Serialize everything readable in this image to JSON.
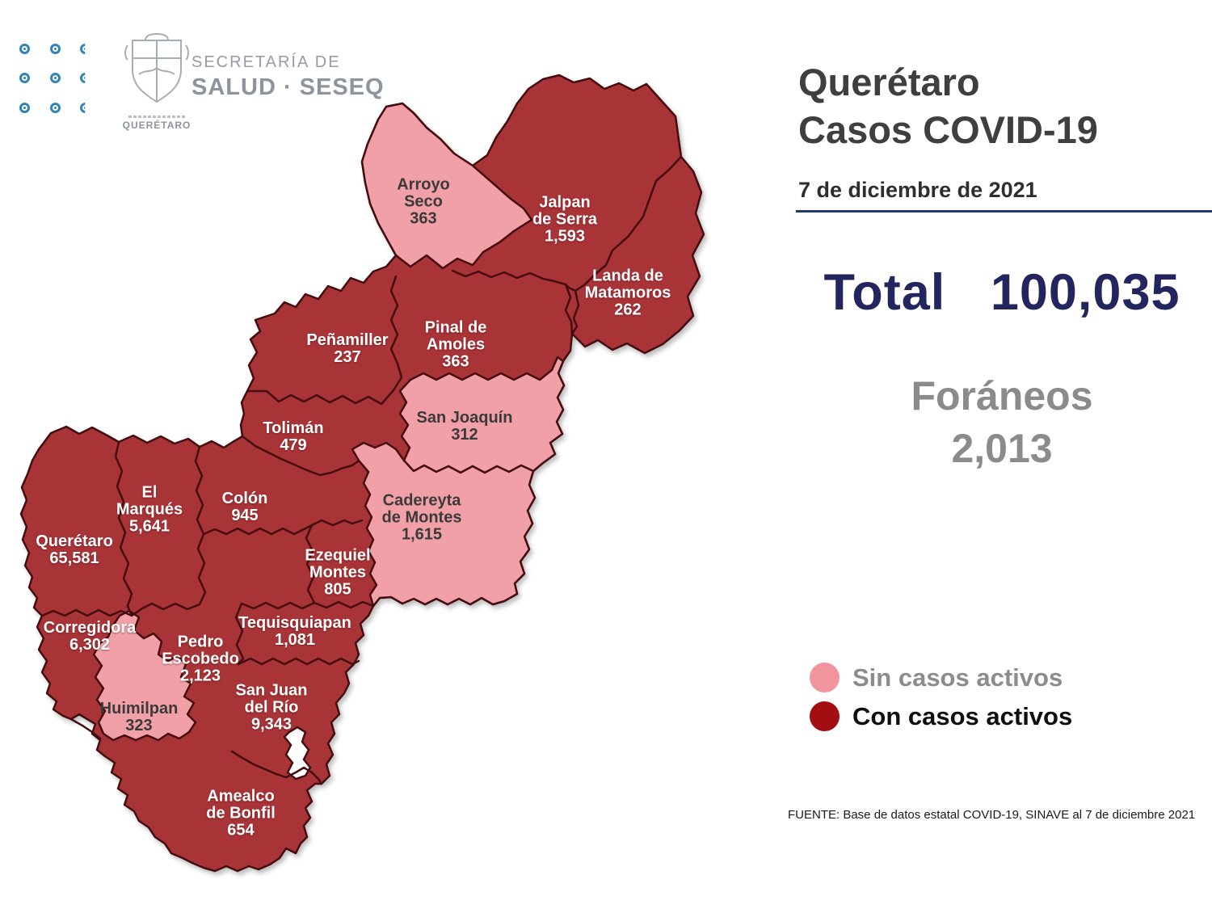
{
  "header": {
    "brand_small": "SECRETARÍA DE",
    "brand_large": "SALUD · SESEQ",
    "crest_caption": "QUERÉTARO"
  },
  "panel": {
    "title_line1": "Querétaro",
    "title_line2": "Casos COVID-19",
    "date": "7 de diciembre de 2021",
    "total_label": "Total",
    "total_value": "100,035",
    "foraneos_label": "Foráneos",
    "foraneos_value": "2,013",
    "legend": [
      {
        "id": "sin-casos",
        "label": "Sin casos activos",
        "color": "#F2949E"
      },
      {
        "id": "con-casos",
        "label": "Con casos activos",
        "color": "#A30E12"
      }
    ],
    "source": "FUENTE: Base de datos estatal COVID-19, SINAVE al 7 de diciembre 2021"
  },
  "chart_data": {
    "type": "choropleth-map",
    "title": "Querétaro Casos COVID-19",
    "date": "7 de diciembre de 2021",
    "total": 100035,
    "foraneos": 2013,
    "legend_position": "right",
    "categories": [
      "Sin casos activos",
      "Con casos activos"
    ],
    "regions": [
      "Arroyo Seco",
      "Jalpan de Serra",
      "Landa de Matamoros",
      "Pinal de Amoles",
      "Peñamiller",
      "San Joaquín",
      "Tolimán",
      "Cadereyta de Montes",
      "Colón",
      "El Marqués",
      "Querétaro",
      "Ezequiel Montes",
      "Tequisquiapan",
      "Corregidora",
      "Pedro Escobedo",
      "Huimilpan",
      "San Juan del Río",
      "Amealco de Bonfil"
    ],
    "values": [
      363,
      1593,
      262,
      363,
      237,
      312,
      479,
      1615,
      945,
      5641,
      65581,
      805,
      1081,
      6302,
      2123,
      323,
      9343,
      654
    ]
  },
  "map": {
    "colors": {
      "sin_casos": "#F2A0A8",
      "con_casos": "#A93438",
      "border": "#450D0F"
    },
    "municipalities": [
      {
        "id": "arroyo-seco",
        "name": "Arroyo\nSeco",
        "cases": "363",
        "status": "sin"
      },
      {
        "id": "jalpan-de-serra",
        "name": "Jalpan\nde Serra",
        "cases": "1,593",
        "status": "con"
      },
      {
        "id": "landa-de-matamoros",
        "name": "Landa de\nMatamoros",
        "cases": "262",
        "status": "con"
      },
      {
        "id": "pinal-de-amoles",
        "name": "Pinal de\nAmoles",
        "cases": "363",
        "status": "con"
      },
      {
        "id": "penamiller",
        "name": "Peñamiller",
        "cases": "237",
        "status": "con"
      },
      {
        "id": "san-joaquin",
        "name": "San Joaquín",
        "cases": "312",
        "status": "sin"
      },
      {
        "id": "toliman",
        "name": "Tolimán",
        "cases": "479",
        "status": "con"
      },
      {
        "id": "cadereyta-de-montes",
        "name": "Cadereyta\nde Montes",
        "cases": "1,615",
        "status": "sin"
      },
      {
        "id": "colon",
        "name": "Colón",
        "cases": "945",
        "status": "con"
      },
      {
        "id": "el-marques",
        "name": "El\nMarqués",
        "cases": "5,641",
        "status": "con"
      },
      {
        "id": "queretaro",
        "name": "Querétaro",
        "cases": "65,581",
        "status": "con"
      },
      {
        "id": "ezequiel-montes",
        "name": "Ezequiel\nMontes",
        "cases": "805",
        "status": "con"
      },
      {
        "id": "tequisquiapan",
        "name": "Tequisquiapan",
        "cases": "1,081",
        "status": "con"
      },
      {
        "id": "corregidora",
        "name": "Corregidora",
        "cases": "6,302",
        "status": "con"
      },
      {
        "id": "pedro-escobedo",
        "name": "Pedro\nEscobedo",
        "cases": "2,123",
        "status": "con"
      },
      {
        "id": "huimilpan",
        "name": "Huimilpan",
        "cases": "323",
        "status": "sin"
      },
      {
        "id": "san-juan-del-rio",
        "name": "San Juan\ndel Río",
        "cases": "9,343",
        "status": "con"
      },
      {
        "id": "amealco-de-bonfil",
        "name": "Amealco\nde Bonfil",
        "cases": "654",
        "status": "con"
      }
    ]
  }
}
